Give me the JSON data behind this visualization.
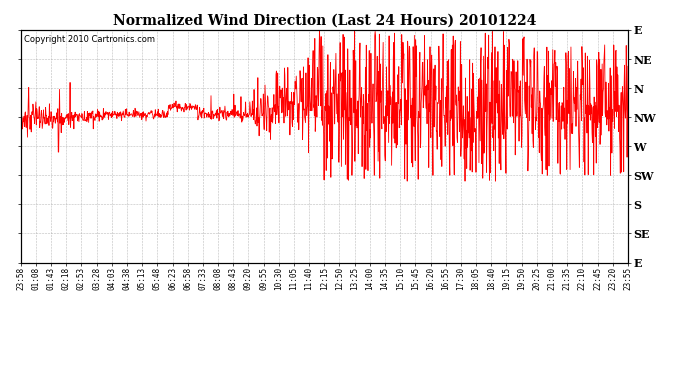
{
  "title": "Normalized Wind Direction (Last 24 Hours) 20101224",
  "copyright_text": "Copyright 2010 Cartronics.com",
  "line_color": "#ff0000",
  "bg_color": "#ffffff",
  "grid_color": "#aaaaaa",
  "y_labels": [
    "E",
    "NE",
    "N",
    "NW",
    "W",
    "SW",
    "S",
    "SE",
    "E"
  ],
  "y_values": [
    8,
    7,
    6,
    5,
    4,
    3,
    2,
    1,
    0
  ],
  "x_tick_labels": [
    "23:58",
    "01:08",
    "01:43",
    "02:18",
    "02:53",
    "03:28",
    "04:03",
    "04:38",
    "05:13",
    "05:48",
    "06:23",
    "06:58",
    "07:33",
    "08:08",
    "08:43",
    "09:20",
    "09:55",
    "10:30",
    "11:05",
    "11:40",
    "12:15",
    "12:50",
    "13:25",
    "14:00",
    "14:35",
    "15:10",
    "15:45",
    "16:20",
    "16:55",
    "17:30",
    "18:05",
    "18:40",
    "19:15",
    "19:50",
    "20:25",
    "21:00",
    "21:35",
    "22:10",
    "22:45",
    "23:20",
    "23:55"
  ],
  "ylim": [
    0,
    8
  ],
  "figsize": [
    6.9,
    3.75
  ],
  "dpi": 100
}
